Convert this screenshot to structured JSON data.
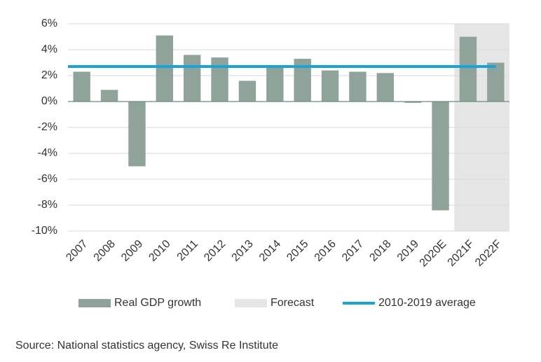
{
  "chart_data": {
    "type": "bar",
    "categories": [
      "2007",
      "2008",
      "2009",
      "2010",
      "2011",
      "2012",
      "2013",
      "2014",
      "2015",
      "2016",
      "2017",
      "2018",
      "2019",
      "2020E",
      "2021F",
      "2022F"
    ],
    "series": [
      {
        "name": "Real GDP growth",
        "color": "#8fa39b",
        "values": [
          2.3,
          0.9,
          -5.0,
          5.1,
          3.6,
          3.4,
          1.6,
          2.8,
          3.3,
          2.4,
          2.3,
          2.2,
          -0.1,
          -8.4,
          5.0,
          3.0
        ]
      }
    ],
    "average": {
      "name": "2010-2019 average",
      "value": 2.7,
      "color": "#1ba3d8"
    },
    "forecast": {
      "name": "Forecast",
      "from": "2021F",
      "color": "#e6e6e6"
    },
    "ylim": [
      -10,
      6
    ],
    "yticks": [
      {
        "value": -10,
        "label": "-10%"
      },
      {
        "value": -8,
        "label": "-8%"
      },
      {
        "value": -6,
        "label": "-6%"
      },
      {
        "value": -4,
        "label": "-4%"
      },
      {
        "value": -2,
        "label": "-2%"
      },
      {
        "value": 0,
        "label": "0%"
      },
      {
        "value": 2,
        "label": "2%"
      },
      {
        "value": 4,
        "label": "4%"
      },
      {
        "value": 6,
        "label": "6%"
      }
    ],
    "grid": true,
    "source": "Source: National statistics agency, Swiss Re Institute"
  }
}
